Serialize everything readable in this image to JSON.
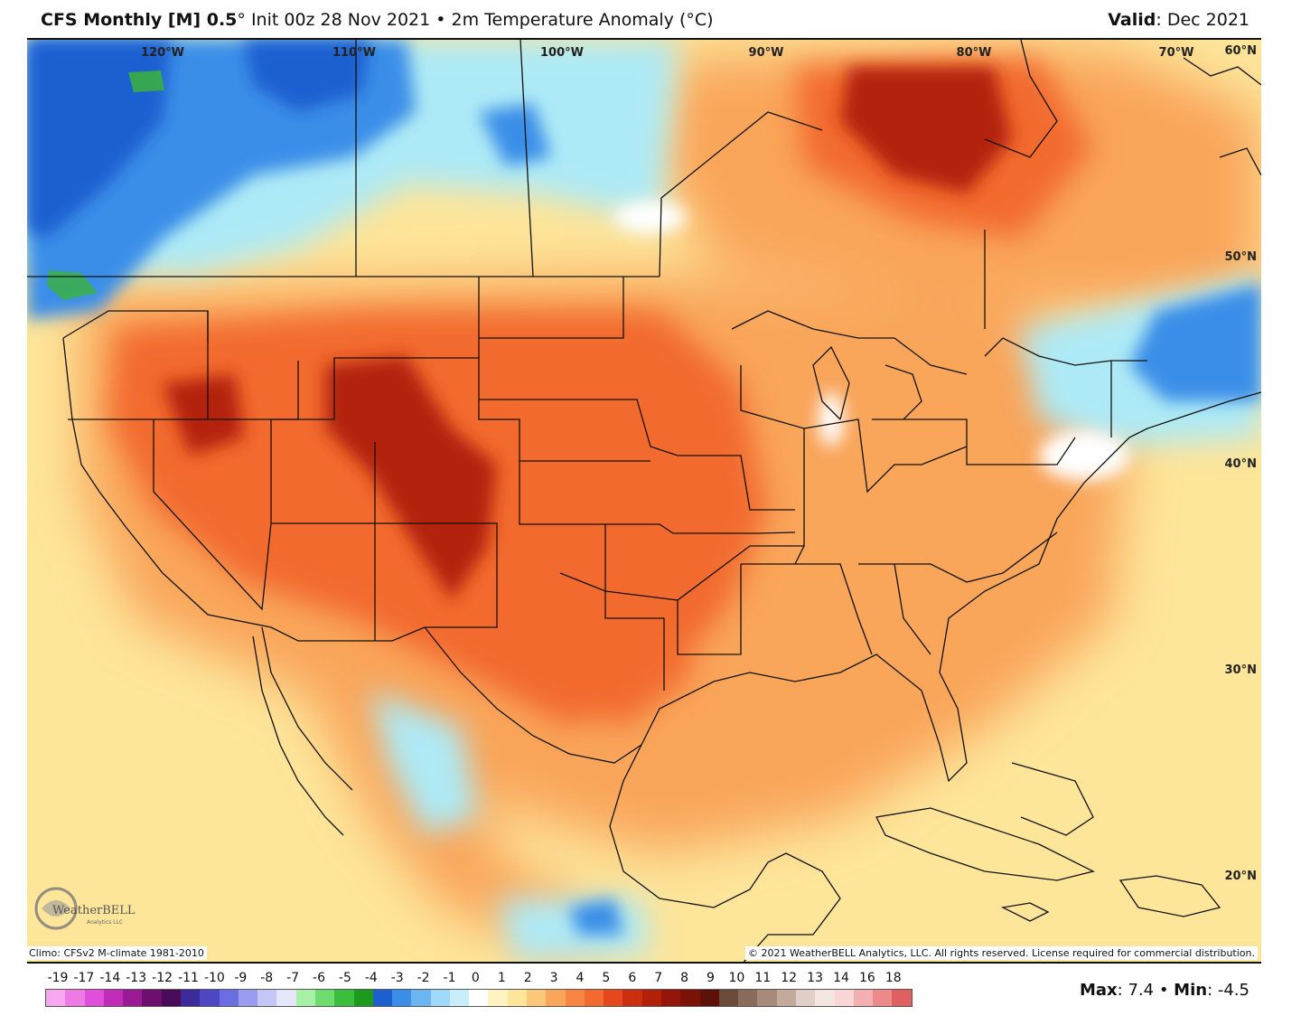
{
  "header": {
    "model": "CFS Monthly [M] 0.5",
    "degree": "°",
    "init": "Init 00z 28 Nov 2021",
    "bullet": "•",
    "field": "2m Temperature Anomaly (°C)",
    "valid_label": "Valid",
    "valid_value": ": Dec 2021"
  },
  "map": {
    "lon_labels": [
      "120°W",
      "110°W",
      "100°W",
      "90°W",
      "80°W",
      "70°W"
    ],
    "lat_labels": [
      "60°N",
      "50°N",
      "40°N",
      "30°N",
      "20°N"
    ],
    "logo_text": "WeatherBELL",
    "logo_subtext": "Analytics LLC",
    "anomaly_colors": {
      "strong_warm": "#b3200a",
      "warm": "#f26a2e",
      "mild_warm": "#f9a55a",
      "slight_warm": "#fde59a",
      "neutral": "#ffffff",
      "slight_cool": "#aeeaf6",
      "cool": "#3b8ee8",
      "strong_cool": "#1e5fd0",
      "green": "#3bb33b"
    }
  },
  "footer": {
    "climo": "Climo: CFSv2 M-climate 1981-2010",
    "copyright": "© 2021 WeatherBELL Analytics, LLC. All rights reserved. License required for commercial distribution."
  },
  "colorbar": {
    "labels": [
      "-19",
      "-17",
      "-14",
      "-13",
      "-12",
      "-11",
      "-10",
      "-9",
      "-8",
      "-7",
      "-6",
      "-5",
      "-4",
      "-3",
      "-2",
      "-1",
      "0",
      "1",
      "2",
      "3",
      "4",
      "5",
      "6",
      "7",
      "8",
      "9",
      "10",
      "11",
      "12",
      "13",
      "14",
      "16",
      "18"
    ],
    "colors": [
      "#f7a6f0",
      "#ee7ae6",
      "#e04fd9",
      "#c02cb8",
      "#9a1a96",
      "#6e0f70",
      "#4a0a5a",
      "#3a2a9a",
      "#4d47c4",
      "#6b6ee0",
      "#9a9cf0",
      "#c4c6f8",
      "#e6e6fb",
      "#a7f0a7",
      "#6fdc6f",
      "#3bbf3b",
      "#1c9a1c",
      "#1e5fd0",
      "#3b8ee8",
      "#6bb5f2",
      "#9fd8f8",
      "#c9eefb",
      "#ffffff",
      "#fff3c4",
      "#fde59a",
      "#fcc878",
      "#f9a55a",
      "#f7853f",
      "#f26a2e",
      "#e6481c",
      "#cc2e10",
      "#b3200a",
      "#96150a",
      "#7a1208",
      "#5c1008",
      "#6b4a3a",
      "#8a6a5a",
      "#a88a7a",
      "#c4aa9c",
      "#e0cfc6",
      "#f4e6e0",
      "#fbd6d6",
      "#f4b0b0",
      "#ec8a8a",
      "#e06060"
    ]
  },
  "stats": {
    "max_label": "Max",
    "max_value": ": 7.4",
    "bullet": "•",
    "min_label": "Min",
    "min_value": ": -4.5"
  }
}
